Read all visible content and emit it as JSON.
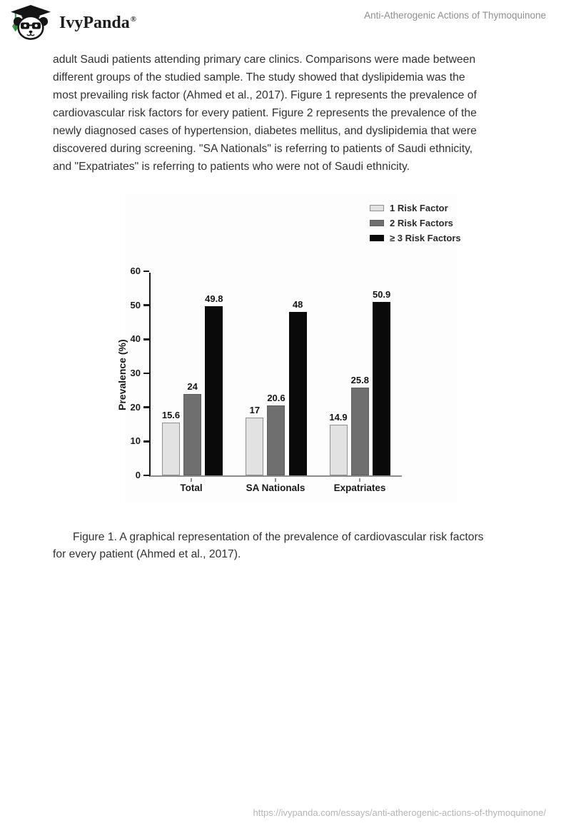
{
  "header": {
    "brand": "IvyPanda",
    "registered_mark": "®",
    "document_title": "Anti-Atherogenic Actions of Thymoquinone"
  },
  "body": {
    "paragraph_lines": [
      "adult Saudi patients attending primary care clinics. Comparisons were made between",
      "different groups of the studied sample. The study showed that dyslipidemia was the",
      "most prevailing risk factor (Ahmed et al., 2017). Figure 1 represents the prevalence of",
      "cardiovascular risk factors for every patient. Figure 2 represents the prevalence of the",
      "newly diagnosed cases of hypertension, diabetes mellitus, and dyslipidemia that were",
      "discovered during screening. \"SA Nationals\" is referring to patients of Saudi ethnicity,",
      "and \"Expatriates\" is referring to patients who were not of Saudi ethnicity."
    ],
    "caption_lines": [
      "Figure 1. A graphical representation of the prevalence of cardiovascular risk factors",
      "for every patient (Ahmed et al., 2017)."
    ]
  },
  "footer": {
    "source_url": "https://ivypanda.com/essays/anti-atherogenic-actions-of-thymoquinone/"
  },
  "chart_data": {
    "type": "bar",
    "title": "",
    "xlabel": "",
    "ylabel": "Prevalence (%)",
    "ylim": [
      0,
      60
    ],
    "yticks": [
      0,
      10,
      20,
      30,
      40,
      50,
      60
    ],
    "grid": false,
    "value_labels": true,
    "legend_position": "top-right",
    "categories": [
      "Total",
      "SA Nationals",
      "Expatriates"
    ],
    "series": [
      {
        "name": "1 Risk Factor",
        "fill": "#e2e2e2",
        "border": "#8f8f8f",
        "values": [
          15.6,
          17,
          14.9
        ]
      },
      {
        "name": "2 Risk Factors",
        "fill": "#6f6f6f",
        "border": "#5c5c5c",
        "values": [
          24,
          20.6,
          25.8
        ]
      },
      {
        "name": "≥ 3 Risk Factors",
        "fill": "#0a0a0a",
        "border": "#0a0a0a",
        "values": [
          49.8,
          48,
          50.9
        ]
      }
    ],
    "colors": {
      "axis": "#1a1a1a",
      "baseline": "#8d8d8d",
      "text": "#1a1a1a"
    }
  }
}
